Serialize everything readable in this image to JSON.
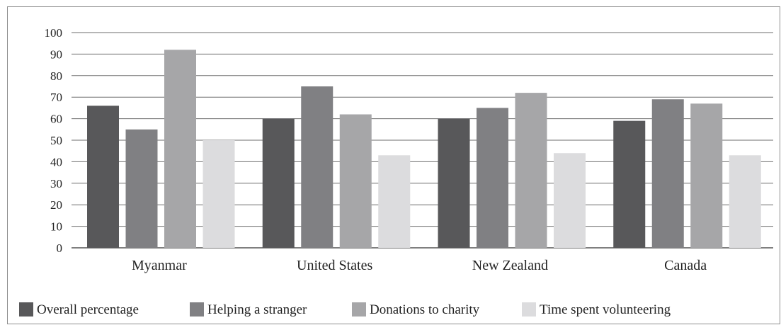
{
  "chart_data": {
    "type": "bar",
    "categories": [
      "Myanmar",
      "United States",
      "New Zealand",
      "Canada"
    ],
    "series": [
      {
        "name": "Overall percentage",
        "color": "#58585a",
        "values": [
          66,
          60,
          60,
          59
        ]
      },
      {
        "name": "Helping a stranger",
        "color": "#808083",
        "values": [
          55,
          75,
          65,
          69
        ]
      },
      {
        "name": "Donations to charity",
        "color": "#a6a6a8",
        "values": [
          92,
          62,
          72,
          67
        ]
      },
      {
        "name": "Time spent volunteering",
        "color": "#dcdcde",
        "values": [
          50,
          43,
          44,
          43
        ]
      }
    ],
    "yticks": [
      0,
      10,
      20,
      30,
      40,
      50,
      60,
      70,
      80,
      90,
      100
    ],
    "ylim": [
      0,
      100
    ],
    "grid": true,
    "legend_position": "bottom"
  }
}
